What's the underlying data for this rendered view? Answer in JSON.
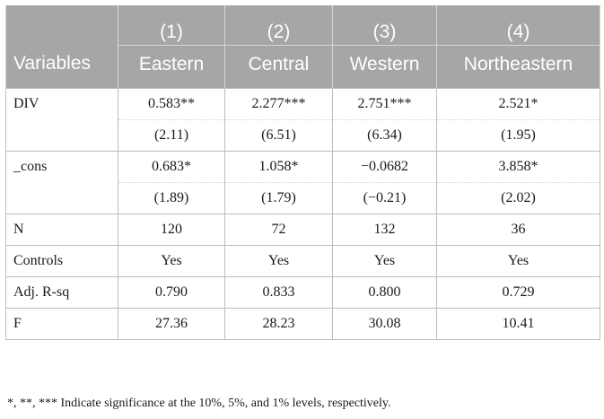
{
  "table": {
    "header_numbers": [
      "(1)",
      "(2)",
      "(3)",
      "(4)"
    ],
    "variables_label": "Variables",
    "regions": [
      "Eastern",
      "Central",
      "Western",
      "Northeastern"
    ],
    "rows": {
      "div": {
        "label": "DIV",
        "coef": [
          "0.583**",
          "2.277***",
          "2.751***",
          "2.521*"
        ],
        "tstat": [
          "(2.11)",
          "(6.51)",
          "(6.34)",
          "(1.95)"
        ]
      },
      "cons": {
        "label": "_cons",
        "coef": [
          "0.683*",
          "1.058*",
          "−0.0682",
          "3.858*"
        ],
        "tstat": [
          "(1.89)",
          "(1.79)",
          "(−0.21)",
          "(2.02)"
        ]
      },
      "n": {
        "label": "N",
        "values": [
          "120",
          "72",
          "132",
          "36"
        ]
      },
      "controls": {
        "label": "Controls",
        "values": [
          "Yes",
          "Yes",
          "Yes",
          "Yes"
        ]
      },
      "adj_r_sq": {
        "label": "Adj. R-sq",
        "values": [
          "0.790",
          "0.833",
          "0.800",
          "0.729"
        ]
      },
      "f": {
        "label": "F",
        "values": [
          "27.36",
          "28.23",
          "30.08",
          "10.41"
        ]
      }
    }
  },
  "footnote": "*, **, *** Indicate significance at the 10%, 5%, and 1% levels, respectively.",
  "colors": {
    "header_bg": "#a6a6a6",
    "header_text": "#ffffff",
    "border": "#bdbdbd"
  }
}
